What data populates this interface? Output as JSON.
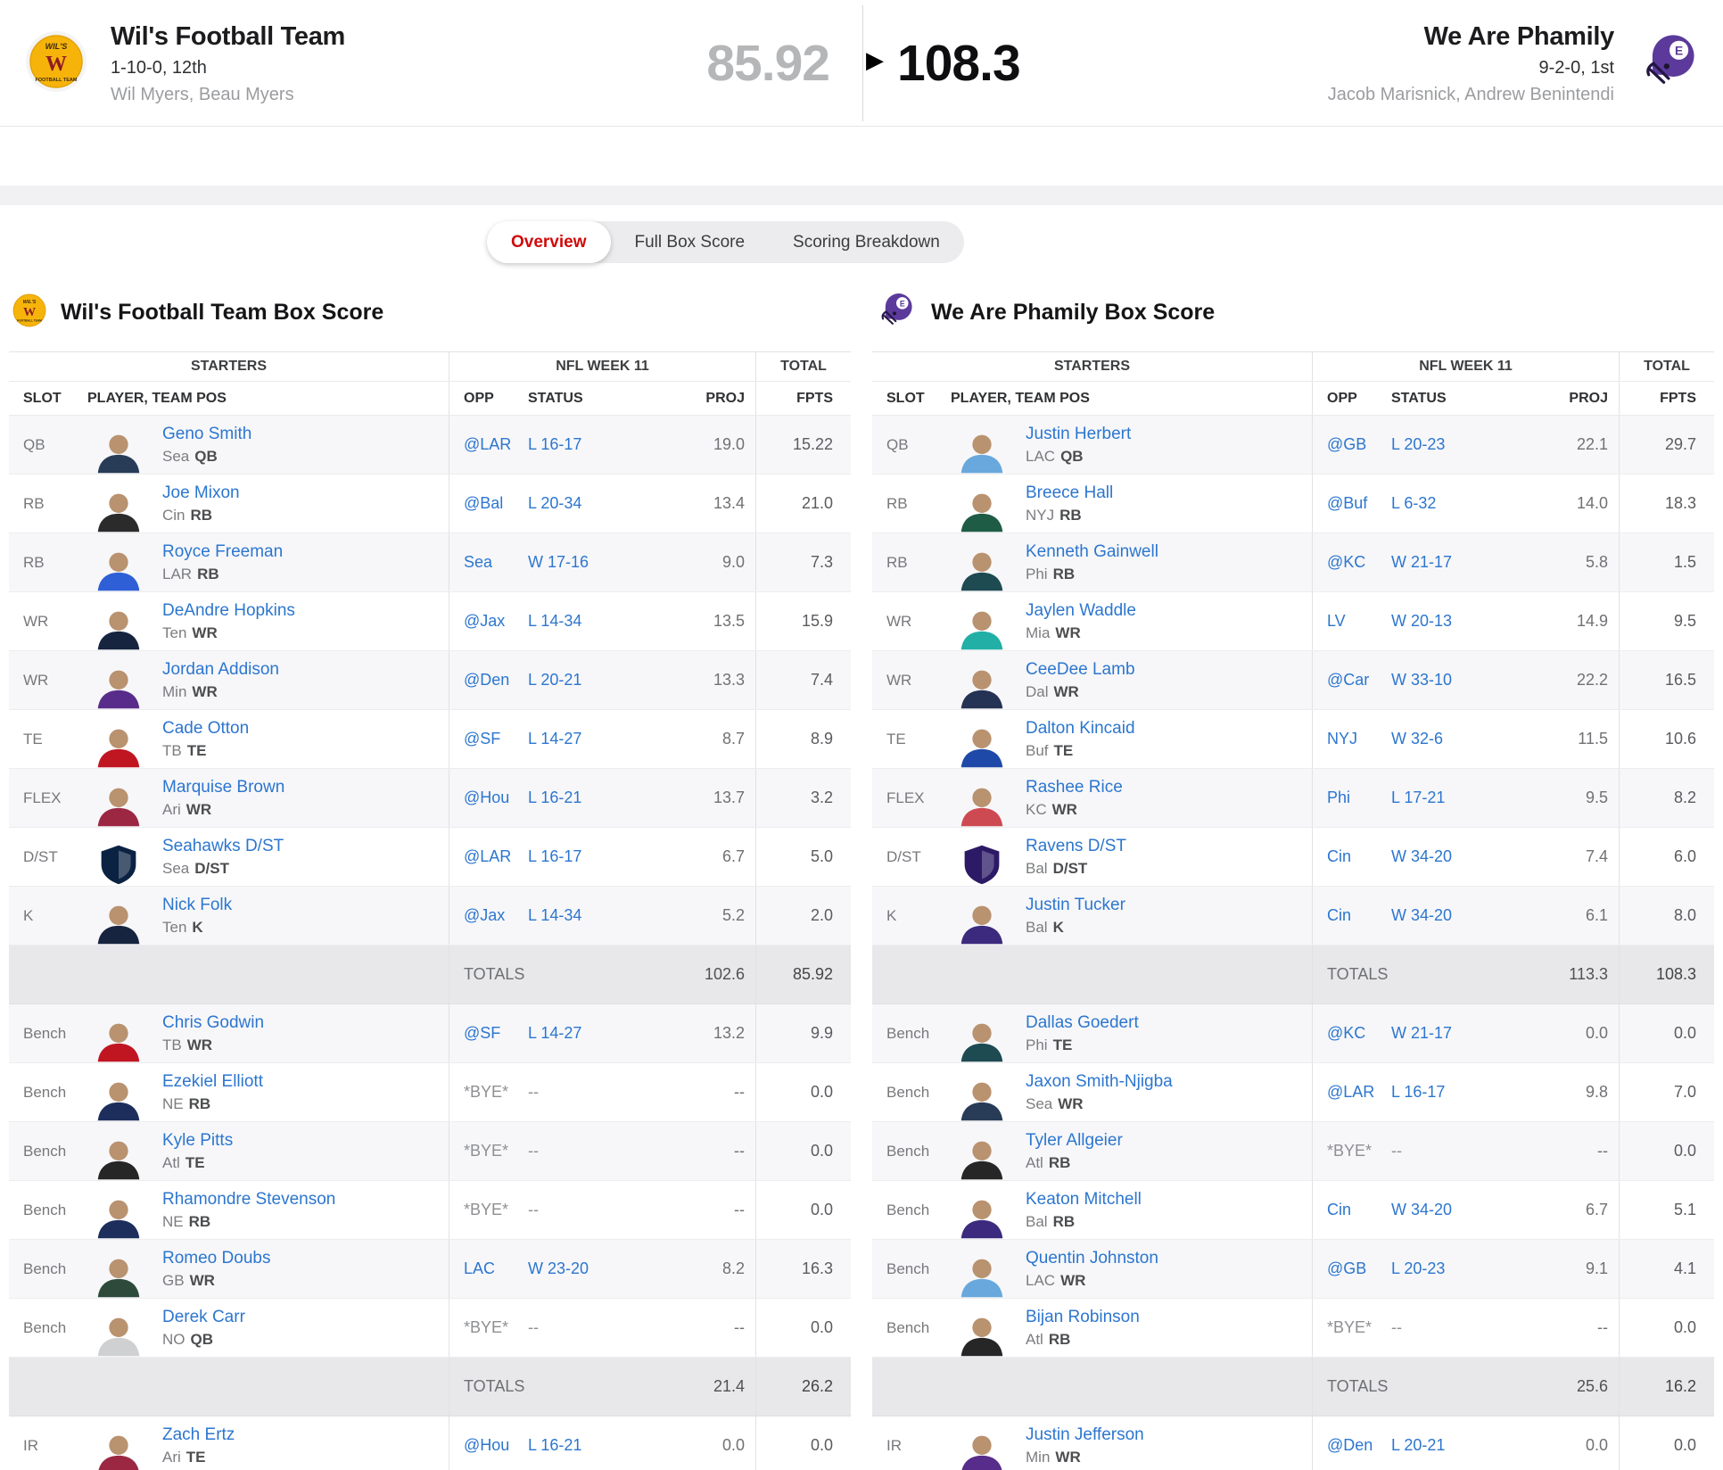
{
  "colors": {
    "link": "#2c76cf",
    "red": "#d00a0a",
    "away_logo_bg": "#F6B40B",
    "away_logo_letter": "#8F1D20",
    "home_logo": "#5B3A9B"
  },
  "icons": {
    "winner_arrow": "▶"
  },
  "header": {
    "away": {
      "name": "Wil's Football Team",
      "record": "1-10-0, 12th",
      "managers": "Wil Myers, Beau Myers",
      "score": "85.92",
      "logo_top": "WIL'S",
      "logo_letter": "W",
      "logo_bottom": "FOOTBALL TEAM"
    },
    "home": {
      "name": "We Are Phamily",
      "record": "9-2-0, 1st",
      "managers": "Jacob Marisnick, Andrew Benintendi",
      "score": "108.3",
      "logo_letter": "E"
    }
  },
  "tabs": [
    {
      "label": "Overview",
      "active": true
    },
    {
      "label": "Full Box Score",
      "active": false
    },
    {
      "label": "Scoring Breakdown",
      "active": false
    }
  ],
  "table_labels": {
    "starters": "STARTERS",
    "week": "NFL WEEK 11",
    "total": "TOTAL",
    "slot": "SLOT",
    "player": "PLAYER, TEAM POS",
    "opp": "OPP",
    "status": "STATUS",
    "proj": "PROJ",
    "fpts": "FPTS",
    "totals": "TOTALS"
  },
  "teams": [
    {
      "title": "Wil's Football Team Box Score",
      "starters": [
        {
          "slot": "QB",
          "name": "Geno Smith",
          "team": "Sea",
          "pos": "QB",
          "opp": "@LAR",
          "status": "L 16-17",
          "proj": "19.0",
          "fpts": "15.22",
          "avatar": "#283B57",
          "dst": false
        },
        {
          "slot": "RB",
          "name": "Joe Mixon",
          "team": "Cin",
          "pos": "RB",
          "opp": "@Bal",
          "status": "L 20-34",
          "proj": "13.4",
          "fpts": "21.0",
          "avatar": "#2B2B2B",
          "dst": false
        },
        {
          "slot": "RB",
          "name": "Royce Freeman",
          "team": "LAR",
          "pos": "RB",
          "opp": "Sea",
          "status": "W 17-16",
          "proj": "9.0",
          "fpts": "7.3",
          "avatar": "#2E5FD6",
          "dst": false
        },
        {
          "slot": "WR",
          "name": "DeAndre Hopkins",
          "team": "Ten",
          "pos": "WR",
          "opp": "@Jax",
          "status": "L 14-34",
          "proj": "13.5",
          "fpts": "15.9",
          "avatar": "#17243F",
          "dst": false
        },
        {
          "slot": "WR",
          "name": "Jordan Addison",
          "team": "Min",
          "pos": "WR",
          "opp": "@Den",
          "status": "L 20-21",
          "proj": "13.3",
          "fpts": "7.4",
          "avatar": "#582C8B",
          "dst": false
        },
        {
          "slot": "TE",
          "name": "Cade Otton",
          "team": "TB",
          "pos": "TE",
          "opp": "@SF",
          "status": "L 14-27",
          "proj": "8.7",
          "fpts": "8.9",
          "avatar": "#C01622",
          "dst": false
        },
        {
          "slot": "FLEX",
          "name": "Marquise Brown",
          "team": "Ari",
          "pos": "WR",
          "opp": "@Hou",
          "status": "L 16-21",
          "proj": "13.7",
          "fpts": "3.2",
          "avatar": "#9B2743",
          "dst": false
        },
        {
          "slot": "D/ST",
          "name": "Seahawks D/ST",
          "team": "Sea",
          "pos": "D/ST",
          "opp": "@LAR",
          "status": "L 16-17",
          "proj": "6.7",
          "fpts": "5.0",
          "avatar": "#0B2243",
          "dst": true
        },
        {
          "slot": "K",
          "name": "Nick Folk",
          "team": "Ten",
          "pos": "K",
          "opp": "@Jax",
          "status": "L 14-34",
          "proj": "5.2",
          "fpts": "2.0",
          "avatar": "#17243F",
          "dst": false
        }
      ],
      "starters_totals": {
        "proj": "102.6",
        "fpts": "85.92"
      },
      "bench": [
        {
          "slot": "Bench",
          "name": "Chris Godwin",
          "team": "TB",
          "pos": "WR",
          "opp": "@SF",
          "status": "L 14-27",
          "proj": "13.2",
          "fpts": "9.9",
          "avatar": "#C01622",
          "dst": false
        },
        {
          "slot": "Bench",
          "name": "Ezekiel Elliott",
          "team": "NE",
          "pos": "RB",
          "opp": "*BYE*",
          "status": "--",
          "proj": "--",
          "fpts": "0.0",
          "avatar": "#1D2E5C",
          "dst": false
        },
        {
          "slot": "Bench",
          "name": "Kyle Pitts",
          "team": "Atl",
          "pos": "TE",
          "opp": "*BYE*",
          "status": "--",
          "proj": "--",
          "fpts": "0.0",
          "avatar": "#262626",
          "dst": false
        },
        {
          "slot": "Bench",
          "name": "Rhamondre Stevenson",
          "team": "NE",
          "pos": "RB",
          "opp": "*BYE*",
          "status": "--",
          "proj": "--",
          "fpts": "0.0",
          "avatar": "#1D2E5C",
          "dst": false
        },
        {
          "slot": "Bench",
          "name": "Romeo Doubs",
          "team": "GB",
          "pos": "WR",
          "opp": "LAC",
          "status": "W 23-20",
          "proj": "8.2",
          "fpts": "16.3",
          "avatar": "#2E4A3B",
          "dst": false
        },
        {
          "slot": "Bench",
          "name": "Derek Carr",
          "team": "NO",
          "pos": "QB",
          "opp": "*BYE*",
          "status": "--",
          "proj": "--",
          "fpts": "0.0",
          "avatar": "#CFD0D2",
          "dst": false
        }
      ],
      "bench_totals": {
        "proj": "21.4",
        "fpts": "26.2"
      },
      "ir": [
        {
          "slot": "IR",
          "name": "Zach Ertz",
          "team": "Ari",
          "pos": "TE",
          "opp": "@Hou",
          "status": "L 16-21",
          "proj": "0.0",
          "fpts": "0.0",
          "avatar": "#9B2743",
          "dst": false
        }
      ]
    },
    {
      "title": "We Are Phamily Box Score",
      "starters": [
        {
          "slot": "QB",
          "name": "Justin Herbert",
          "team": "LAC",
          "pos": "QB",
          "opp": "@GB",
          "status": "L 20-23",
          "proj": "22.1",
          "fpts": "29.7",
          "avatar": "#69A8DC",
          "dst": false
        },
        {
          "slot": "RB",
          "name": "Breece Hall",
          "team": "NYJ",
          "pos": "RB",
          "opp": "@Buf",
          "status": "L 6-32",
          "proj": "14.0",
          "fpts": "18.3",
          "avatar": "#1F5C45",
          "dst": false
        },
        {
          "slot": "RB",
          "name": "Kenneth Gainwell",
          "team": "Phi",
          "pos": "RB",
          "opp": "@KC",
          "status": "W 21-17",
          "proj": "5.8",
          "fpts": "1.5",
          "avatar": "#1E4A52",
          "dst": false
        },
        {
          "slot": "WR",
          "name": "Jaylen Waddle",
          "team": "Mia",
          "pos": "WR",
          "opp": "LV",
          "status": "W 20-13",
          "proj": "14.9",
          "fpts": "9.5",
          "avatar": "#22AFA6",
          "dst": false
        },
        {
          "slot": "WR",
          "name": "CeeDee Lamb",
          "team": "Dal",
          "pos": "WR",
          "opp": "@Car",
          "status": "W 33-10",
          "proj": "22.2",
          "fpts": "16.5",
          "avatar": "#243253",
          "dst": false
        },
        {
          "slot": "TE",
          "name": "Dalton Kincaid",
          "team": "Buf",
          "pos": "TE",
          "opp": "NYJ",
          "status": "W 32-6",
          "proj": "11.5",
          "fpts": "10.6",
          "avatar": "#1F49A8",
          "dst": false
        },
        {
          "slot": "FLEX",
          "name": "Rashee Rice",
          "team": "KC",
          "pos": "WR",
          "opp": "Phi",
          "status": "L 17-21",
          "proj": "9.5",
          "fpts": "8.2",
          "avatar": "#CE4A52",
          "dst": false
        },
        {
          "slot": "D/ST",
          "name": "Ravens D/ST",
          "team": "Bal",
          "pos": "D/ST",
          "opp": "Cin",
          "status": "W 34-20",
          "proj": "7.4",
          "fpts": "6.0",
          "avatar": "#2D1A66",
          "dst": true
        },
        {
          "slot": "K",
          "name": "Justin Tucker",
          "team": "Bal",
          "pos": "K",
          "opp": "Cin",
          "status": "W 34-20",
          "proj": "6.1",
          "fpts": "8.0",
          "avatar": "#3B2A7D",
          "dst": false
        }
      ],
      "starters_totals": {
        "proj": "113.3",
        "fpts": "108.3"
      },
      "bench": [
        {
          "slot": "Bench",
          "name": "Dallas Goedert",
          "team": "Phi",
          "pos": "TE",
          "opp": "@KC",
          "status": "W 21-17",
          "proj": "0.0",
          "fpts": "0.0",
          "avatar": "#1E4A52",
          "dst": false
        },
        {
          "slot": "Bench",
          "name": "Jaxon Smith-Njigba",
          "team": "Sea",
          "pos": "WR",
          "opp": "@LAR",
          "status": "L 16-17",
          "proj": "9.8",
          "fpts": "7.0",
          "avatar": "#283B57",
          "dst": false
        },
        {
          "slot": "Bench",
          "name": "Tyler Allgeier",
          "team": "Atl",
          "pos": "RB",
          "opp": "*BYE*",
          "status": "--",
          "proj": "--",
          "fpts": "0.0",
          "avatar": "#262626",
          "dst": false
        },
        {
          "slot": "Bench",
          "name": "Keaton Mitchell",
          "team": "Bal",
          "pos": "RB",
          "opp": "Cin",
          "status": "W 34-20",
          "proj": "6.7",
          "fpts": "5.1",
          "avatar": "#3B2A7D",
          "dst": false
        },
        {
          "slot": "Bench",
          "name": "Quentin Johnston",
          "team": "LAC",
          "pos": "WR",
          "opp": "@GB",
          "status": "L 20-23",
          "proj": "9.1",
          "fpts": "4.1",
          "avatar": "#69A8DC",
          "dst": false
        },
        {
          "slot": "Bench",
          "name": "Bijan Robinson",
          "team": "Atl",
          "pos": "RB",
          "opp": "*BYE*",
          "status": "--",
          "proj": "--",
          "fpts": "0.0",
          "avatar": "#262626",
          "dst": false
        }
      ],
      "bench_totals": {
        "proj": "25.6",
        "fpts": "16.2"
      },
      "ir": [
        {
          "slot": "IR",
          "name": "Justin Jefferson",
          "team": "Min",
          "pos": "WR",
          "opp": "@Den",
          "status": "L 20-21",
          "proj": "0.0",
          "fpts": "0.0",
          "avatar": "#582C8B",
          "dst": false
        }
      ]
    }
  ]
}
